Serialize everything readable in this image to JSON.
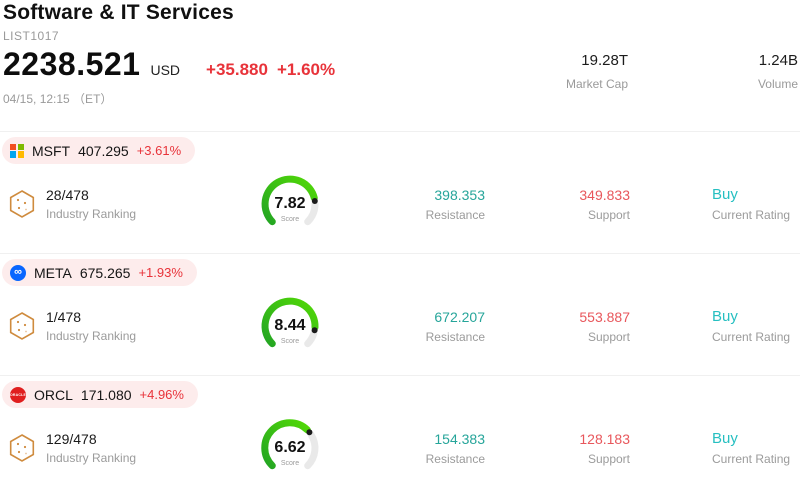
{
  "header": {
    "title": "Software & IT Services",
    "subtitle": "LIST1017",
    "price": "2238.521",
    "currency": "USD",
    "change": "+35.880",
    "change_pct": "+1.60%",
    "datetime": "04/15, 12:15 （ET）",
    "market_cap": {
      "value": "19.28T",
      "label": "Market Cap"
    },
    "volume": {
      "value": "1.24B",
      "label": "Volume"
    }
  },
  "colors": {
    "change_red": "#e8333a",
    "support_red": "#e8575c",
    "resistance_teal": "#26a59a",
    "rating_teal": "#26bfc1",
    "gauge_green": "#52d907",
    "pill_bg": "#fdecec"
  },
  "stocks": [
    {
      "symbol": "MSFT",
      "price": "407.295",
      "change_pct": "+3.61%",
      "logo": "microsoft-logo",
      "ranking": "28/478",
      "ranking_label": "Industry Ranking",
      "score": 7.82,
      "score_label": "Score",
      "resistance": "398.353",
      "resistance_label": "Resistance",
      "support": "349.833",
      "support_label": "Support",
      "rating": "Buy",
      "rating_label": "Current Rating"
    },
    {
      "symbol": "META",
      "price": "675.265",
      "change_pct": "+1.93%",
      "logo": "meta-logo",
      "ranking": "1/478",
      "ranking_label": "Industry Ranking",
      "score": 8.44,
      "score_label": "Score",
      "resistance": "672.207",
      "resistance_label": "Resistance",
      "support": "553.887",
      "support_label": "Support",
      "rating": "Buy",
      "rating_label": "Current Rating"
    },
    {
      "symbol": "ORCL",
      "price": "171.080",
      "change_pct": "+4.96%",
      "logo": "oracle-logo",
      "logo_text": "ORACLE",
      "ranking": "129/478",
      "ranking_label": "Industry Ranking",
      "score": 6.62,
      "score_label": "Score",
      "resistance": "154.383",
      "resistance_label": "Resistance",
      "support": "128.183",
      "support_label": "Support",
      "rating": "Buy",
      "rating_label": "Current Rating"
    }
  ]
}
